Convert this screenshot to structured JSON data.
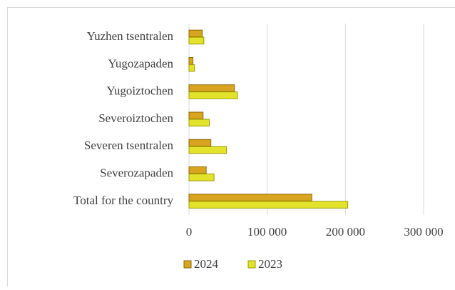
{
  "chart_data": {
    "type": "bar",
    "orientation": "horizontal",
    "categories": [
      "Yuzhen tsentralen",
      "Yugozapaden",
      "Yugoiztochen",
      "Severoiztochen",
      "Severen tsentralen",
      "Severozapaden",
      "Total for the country"
    ],
    "series": [
      {
        "name": "2024",
        "color": "#d9a520",
        "values": [
          17000,
          5000,
          58000,
          18000,
          28000,
          22000,
          157000
        ]
      },
      {
        "name": "2023",
        "color": "#e3e32b",
        "values": [
          19000,
          7000,
          62000,
          26000,
          48000,
          32000,
          203000
        ]
      }
    ],
    "xlim": [
      0,
      300000
    ],
    "xticks": [
      0,
      {
        "value": 100000,
        "label": "100 000"
      },
      {
        "value": 200000,
        "label": "200 000"
      },
      {
        "value": 300000,
        "label": "300 000"
      }
    ],
    "grid": true,
    "legend": "bottom"
  }
}
